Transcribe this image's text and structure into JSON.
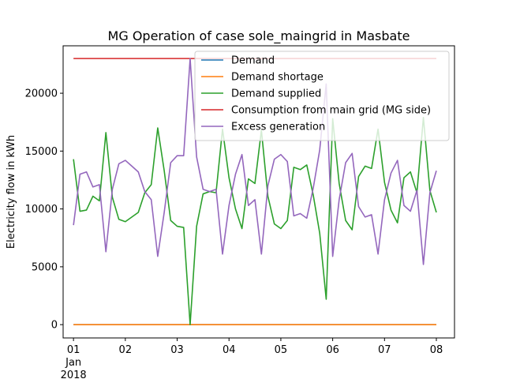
{
  "chart_data": {
    "type": "line",
    "title": "MG Operation of case sole_maingrid in Masbate",
    "xlabel": "",
    "ylabel": "Electricity flow in kWh",
    "ylim": [
      -1150,
      24100
    ],
    "xlim": [
      -0.2,
      7.35
    ],
    "yticks": [
      0,
      5000,
      10000,
      15000,
      20000
    ],
    "ytick_labels": [
      "0",
      "5000",
      "10000",
      "15000",
      "20000"
    ],
    "xticks": [
      0,
      1,
      2,
      3,
      4,
      5,
      6,
      7
    ],
    "xtick_labels": [
      "01",
      "02",
      "03",
      "04",
      "05",
      "06",
      "07",
      "08"
    ],
    "xtick_sublabels": [
      "Jan",
      "2018"
    ],
    "grid": false,
    "legend_position": "upper-right",
    "x_unit": "days since 2018-01-01",
    "series": [
      {
        "name": "Demand",
        "color": "#1f77b4",
        "x": [
          0,
          7
        ],
        "values": [
          0,
          0
        ]
      },
      {
        "name": "Demand shortage",
        "color": "#ff7f0e",
        "x": [
          0,
          7
        ],
        "values": [
          0,
          0
        ]
      },
      {
        "name": "Demand supplied",
        "color": "#2ca02c",
        "x": [
          0,
          0.125,
          0.25,
          0.375,
          0.5,
          0.625,
          0.75,
          0.875,
          1.0,
          1.125,
          1.25,
          1.375,
          1.5,
          1.625,
          1.75,
          1.875,
          2.0,
          2.125,
          2.25,
          2.375,
          2.5,
          2.625,
          2.75,
          2.875,
          3.0,
          3.125,
          3.25,
          3.375,
          3.5,
          3.625,
          3.75,
          3.875,
          4.0,
          4.125,
          4.25,
          4.375,
          4.5,
          4.625,
          4.75,
          4.875,
          5.0,
          5.125,
          5.25,
          5.375,
          5.5,
          5.625,
          5.75,
          5.875,
          6.0,
          6.125,
          6.25,
          6.375,
          6.5,
          6.625,
          6.75,
          6.875,
          7.0
        ],
        "values": [
          14300,
          9800,
          9900,
          11100,
          10700,
          16600,
          11000,
          9100,
          8900,
          9300,
          9700,
          11400,
          12100,
          17000,
          13300,
          9000,
          8500,
          8400,
          0,
          8500,
          11300,
          11500,
          11400,
          16900,
          12700,
          10000,
          8300,
          12600,
          12200,
          16800,
          11100,
          8700,
          8300,
          9000,
          13600,
          13400,
          13800,
          11200,
          7900,
          2200,
          17800,
          12200,
          9000,
          8200,
          12800,
          13700,
          13500,
          16900,
          12300,
          9900,
          8800,
          12700,
          13200,
          11400,
          17900,
          11600,
          9700
        ]
      },
      {
        "name": "Consumption from main grid (MG side)",
        "color": "#d62728",
        "x": [
          0,
          7
        ],
        "values": [
          23000,
          23000
        ]
      },
      {
        "name": "Excess generation",
        "color": "#9467bd",
        "x": [
          0,
          0.125,
          0.25,
          0.375,
          0.5,
          0.625,
          0.75,
          0.875,
          1.0,
          1.125,
          1.25,
          1.375,
          1.5,
          1.625,
          1.75,
          1.875,
          2.0,
          2.125,
          2.25,
          2.375,
          2.5,
          2.625,
          2.75,
          2.875,
          3.0,
          3.125,
          3.25,
          3.375,
          3.5,
          3.625,
          3.75,
          3.875,
          4.0,
          4.125,
          4.25,
          4.375,
          4.5,
          4.625,
          4.75,
          4.875,
          5.0,
          5.125,
          5.25,
          5.375,
          5.5,
          5.625,
          5.75,
          5.875,
          6.0,
          6.125,
          6.25,
          6.375,
          6.5,
          6.625,
          6.75,
          6.875,
          7.0
        ],
        "values": [
          8600,
          13000,
          13200,
          11900,
          12100,
          6300,
          11700,
          13900,
          14200,
          13700,
          13200,
          11500,
          10800,
          5900,
          9700,
          14000,
          14600,
          14600,
          23000,
          14500,
          11700,
          11500,
          11700,
          6100,
          10300,
          13000,
          14700,
          10300,
          10800,
          6100,
          12000,
          14300,
          14700,
          14100,
          9400,
          9600,
          9200,
          11800,
          15100,
          20800,
          5900,
          10800,
          14000,
          14800,
          10200,
          9300,
          9500,
          6100,
          10800,
          13100,
          14200,
          10300,
          9800,
          11600,
          5200,
          11400,
          13300
        ]
      }
    ]
  }
}
